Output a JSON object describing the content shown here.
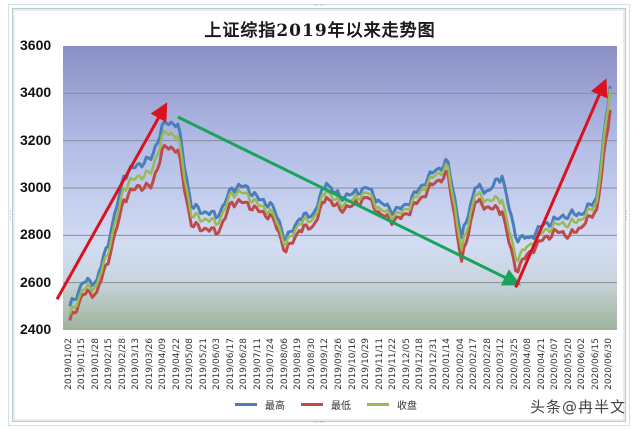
{
  "chart_data": {
    "type": "line",
    "title": "上证综指2019年以来走势图",
    "xlabel": "",
    "ylabel": "",
    "ylim": [
      2400,
      3600
    ],
    "yticks": [
      2400,
      2600,
      2800,
      3000,
      3200,
      3400,
      3600
    ],
    "grid": true,
    "legend_position": "bottom",
    "categories": [
      "2019/01/02",
      "2019/01/15",
      "2019/01/28",
      "2019/02/15",
      "2019/02/28",
      "2019/03/13",
      "2019/03/26",
      "2019/04/09",
      "2019/04/22",
      "2019/05/08",
      "2019/05/21",
      "2019/06/03",
      "2019/06/17",
      "2019/06/28",
      "2019/07/11",
      "2019/07/24",
      "2019/08/06",
      "2019/08/19",
      "2019/08/30",
      "2019/09/12",
      "2019/09/26",
      "2019/10/16",
      "2019/10/29",
      "2019/11/11",
      "2019/11/22",
      "2019/12/05",
      "2019/12/18",
      "2019/12/31",
      "2020/01/14",
      "2020/02/04",
      "2020/02/17",
      "2020/02/28",
      "2020/03/12",
      "2020/03/25",
      "2020/04/08",
      "2020/04/21",
      "2020/05/07",
      "2020/05/20",
      "2020/06/02",
      "2020/06/15",
      "2020/06/30"
    ],
    "series": [
      {
        "name": "最高",
        "color": "#4a7ebb",
        "values": [
          2500,
          2600,
          2610,
          2800,
          3050,
          3100,
          3120,
          3280,
          3270,
          2920,
          2900,
          2880,
          3000,
          3010,
          2950,
          2930,
          2780,
          2870,
          2890,
          3020,
          2960,
          2980,
          3000,
          2940,
          2900,
          2930,
          3010,
          3070,
          3110,
          2790,
          3000,
          2990,
          3050,
          2790,
          2790,
          2840,
          2870,
          2890,
          2890,
          2960,
          3430
        ]
      },
      {
        "name": "最低",
        "color": "#be4b48",
        "values": [
          2440,
          2550,
          2560,
          2720,
          2950,
          3010,
          3000,
          3180,
          3160,
          2840,
          2830,
          2810,
          2940,
          2940,
          2900,
          2880,
          2730,
          2820,
          2840,
          2960,
          2910,
          2930,
          2960,
          2890,
          2860,
          2890,
          2960,
          3020,
          3060,
          2690,
          2940,
          2920,
          2900,
          2650,
          2730,
          2780,
          2820,
          2800,
          2840,
          2910,
          3330
        ]
      },
      {
        "name": "收盘",
        "color": "#98b954",
        "values": [
          2465,
          2570,
          2590,
          2760,
          3000,
          3050,
          3060,
          3240,
          3220,
          2880,
          2870,
          2850,
          2980,
          2980,
          2925,
          2900,
          2760,
          2850,
          2870,
          2990,
          2930,
          2955,
          2980,
          2910,
          2880,
          2910,
          2990,
          3050,
          3090,
          2740,
          2970,
          2950,
          2950,
          2700,
          2760,
          2810,
          2850,
          2850,
          2870,
          2940,
          3420
        ]
      }
    ],
    "annotations": [
      {
        "type": "arrow",
        "color": "#d9121f",
        "from": [
          "2019/01/02",
          2530
        ],
        "to": [
          "2019/04/09",
          3340
        ],
        "meaning": "rise"
      },
      {
        "type": "arrow",
        "color": "#1aa35a",
        "from": [
          "2019/04/22",
          3300
        ],
        "to": [
          "2020/03/25",
          2600
        ],
        "meaning": "decline"
      },
      {
        "type": "arrow",
        "color": "#d9121f",
        "from": [
          "2020/03/25",
          2580
        ],
        "to": [
          "2020/06/30",
          3440
        ],
        "meaning": "rise"
      }
    ]
  },
  "legend": {
    "items": [
      {
        "label": "最高",
        "color": "#4a7ebb"
      },
      {
        "label": "最低",
        "color": "#be4b48"
      },
      {
        "label": "收盘",
        "color": "#98b954"
      }
    ]
  },
  "watermark": "头条@冉半文"
}
